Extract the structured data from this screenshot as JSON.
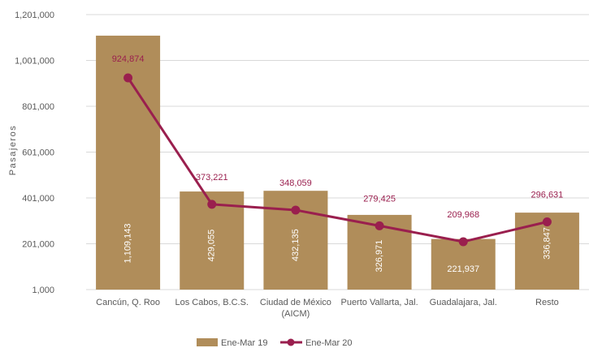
{
  "chart_data": {
    "type": "bar",
    "categories": [
      [
        "Cancún, Q. Roo"
      ],
      [
        "Los Cabos, B.C.S."
      ],
      [
        "Ciudad de México",
        "(AICM)"
      ],
      [
        "Puerto Vallarta, Jal."
      ],
      [
        "Guadalajara, Jal."
      ],
      [
        "Resto"
      ]
    ],
    "ylabel": "Pasajeros",
    "xlabel": "",
    "ylim": [
      1000,
      1201000
    ],
    "yticks": [
      1000,
      201000,
      401000,
      601000,
      801000,
      1001000,
      1201000
    ],
    "ytick_labels": [
      "1,000",
      "201,000",
      "401,000",
      "601,000",
      "801,000",
      "1,001,000",
      "1,201,000"
    ],
    "grid": true,
    "legend_position": "bottom",
    "series": [
      {
        "name": "Ene-Mar 19",
        "kind": "bar",
        "color": "#b08d5a",
        "values": [
          1109143,
          429055,
          432135,
          326971,
          221937,
          336847
        ],
        "labels": [
          "1,109,143",
          "429,055",
          "432,135",
          "326,971",
          "221,937",
          "336,847"
        ],
        "label_rotated": [
          true,
          true,
          true,
          true,
          false,
          true
        ]
      },
      {
        "name": "Ene-Mar 20",
        "kind": "line",
        "color": "#9a1f4e",
        "values": [
          924874,
          373221,
          348059,
          279425,
          209968,
          296631
        ],
        "labels": [
          "924,874",
          "373,221",
          "348,059",
          "279,425",
          "209,968",
          "296,631"
        ]
      }
    ]
  }
}
